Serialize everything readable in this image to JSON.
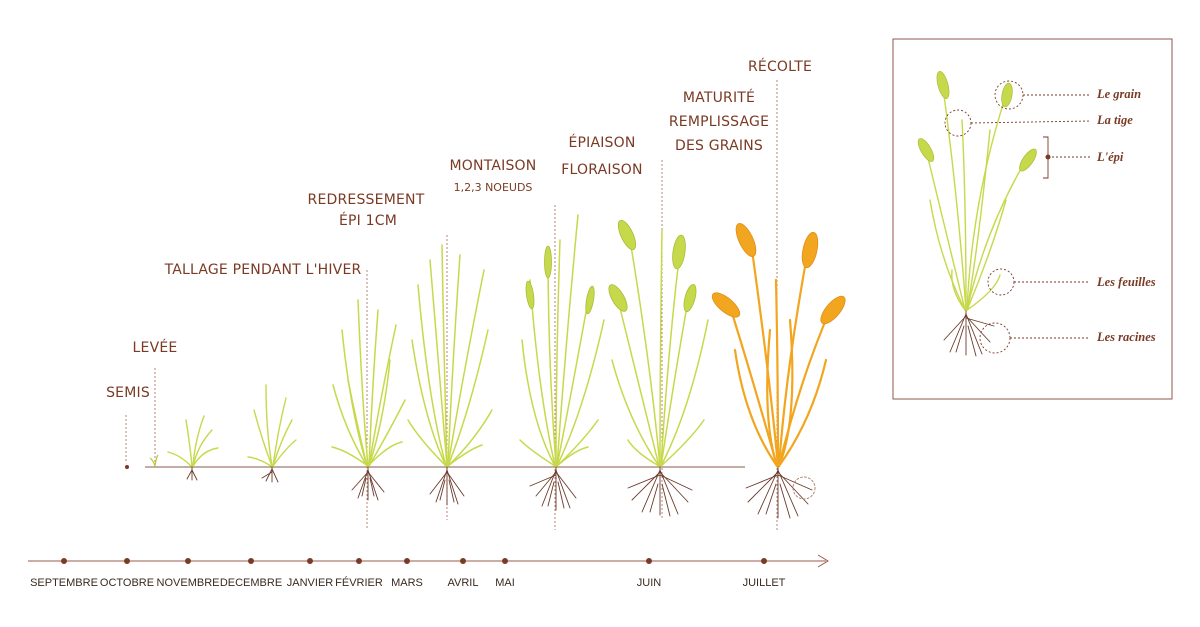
{
  "colors": {
    "brown": "#7a3a24",
    "root": "#6b3a2a",
    "green": "#c6d94a",
    "green_dark": "#a9bd3a",
    "gold": "#f2a51e",
    "gold_dark": "#e0901a",
    "frame": "#8c5a48"
  },
  "stages": [
    {
      "id": "semis",
      "lines": [
        "SEMIS"
      ]
    },
    {
      "id": "levee",
      "lines": [
        "LEVÉE"
      ]
    },
    {
      "id": "tallage",
      "lines": [
        "TALLAGE PENDANT L'HIVER"
      ]
    },
    {
      "id": "redressement",
      "lines": [
        "REDRESSEMENT",
        "ÉPI 1CM"
      ]
    },
    {
      "id": "montaison",
      "lines": [
        "MONTAISON"
      ],
      "sub": "1,2,3 NOEUDS"
    },
    {
      "id": "epiaison",
      "lines": [
        "ÉPIAISON",
        "FLORAISON"
      ]
    },
    {
      "id": "maturite",
      "lines": [
        "MATURITÉ",
        "REMPLISSAGE",
        "DES GRAINS"
      ]
    },
    {
      "id": "recolte",
      "lines": [
        "RÉCOLTE"
      ]
    }
  ],
  "months": [
    "SEPTEMBRE",
    "OCTOBRE",
    "NOVEMBRE",
    "DECEMBRE",
    "JANVIER",
    "FÉVRIER",
    "MARS",
    "AVRIL",
    "MAI",
    "JUIN",
    "JUILLET"
  ],
  "anatomy": {
    "grain": "Le grain",
    "tige": "La tige",
    "epi": "L'épi",
    "feuilles": "Les feuilles",
    "racines": "Les racines"
  }
}
